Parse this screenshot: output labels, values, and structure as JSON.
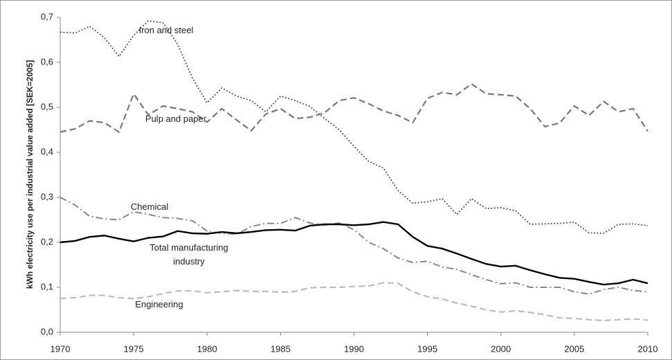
{
  "chart_data": {
    "type": "line",
    "y_label": "kWh electricity use per industrial value added [SEK=2005]",
    "x": [
      1970,
      1971,
      1972,
      1973,
      1974,
      1975,
      1976,
      1977,
      1978,
      1979,
      1980,
      1981,
      1982,
      1983,
      1984,
      1985,
      1986,
      1987,
      1988,
      1989,
      1990,
      1991,
      1992,
      1993,
      1994,
      1995,
      1996,
      1997,
      1998,
      1999,
      2000,
      2001,
      2002,
      2003,
      2004,
      2005,
      2006,
      2007,
      2008,
      2009,
      2010
    ],
    "xlim": [
      1970,
      2010
    ],
    "xticks": [
      1970,
      1975,
      1980,
      1985,
      1990,
      1995,
      2000,
      2005,
      2010
    ],
    "ylim": [
      0,
      0.7
    ],
    "yticks": [
      {
        "value": 0,
        "label": "0,0"
      },
      {
        "value": 0.1,
        "label": "0,1"
      },
      {
        "value": 0.2,
        "label": "0,2"
      },
      {
        "value": 0.3,
        "label": "0,3"
      },
      {
        "value": 0.4,
        "label": "0,4"
      },
      {
        "value": 0.5,
        "label": "0,5"
      },
      {
        "value": 0.6,
        "label": "0,6"
      },
      {
        "value": 0.7,
        "label": "0,7"
      }
    ],
    "grid": false,
    "series": [
      {
        "name": "Iron and steel",
        "color": "#555555",
        "line_style": "dotted",
        "values": [
          0.667,
          0.665,
          0.68,
          0.655,
          0.613,
          0.66,
          0.692,
          0.688,
          0.64,
          0.565,
          0.51,
          0.543,
          0.525,
          0.515,
          0.49,
          0.525,
          0.515,
          0.502,
          0.475,
          0.45,
          0.413,
          0.38,
          0.365,
          0.315,
          0.287,
          0.29,
          0.297,
          0.262,
          0.297,
          0.275,
          0.277,
          0.27,
          0.24,
          0.241,
          0.242,
          0.245,
          0.221,
          0.22,
          0.24,
          0.241,
          0.237
        ]
      },
      {
        "name": "Pulp and paper",
        "color": "#777777",
        "line_style": "dashed",
        "values": [
          0.445,
          0.452,
          0.47,
          0.466,
          0.445,
          0.53,
          0.483,
          0.503,
          0.497,
          0.49,
          0.467,
          0.497,
          0.472,
          0.448,
          0.485,
          0.497,
          0.475,
          0.478,
          0.488,
          0.515,
          0.521,
          0.508,
          0.492,
          0.482,
          0.466,
          0.52,
          0.533,
          0.528,
          0.552,
          0.53,
          0.528,
          0.525,
          0.497,
          0.457,
          0.465,
          0.503,
          0.482,
          0.513,
          0.49,
          0.497,
          0.447
        ]
      },
      {
        "name": "Chemical",
        "color": "#888888",
        "line_style": "dashdot",
        "values": [
          0.3,
          0.283,
          0.258,
          0.252,
          0.25,
          0.268,
          0.262,
          0.255,
          0.253,
          0.248,
          0.225,
          0.22,
          0.218,
          0.235,
          0.242,
          0.242,
          0.255,
          0.243,
          0.238,
          0.243,
          0.228,
          0.2,
          0.186,
          0.165,
          0.155,
          0.158,
          0.145,
          0.14,
          0.128,
          0.117,
          0.108,
          0.11,
          0.1,
          0.1,
          0.1,
          0.09,
          0.085,
          0.095,
          0.1,
          0.093,
          0.09
        ]
      },
      {
        "name": "Total manufacturing industry",
        "color": "#000000",
        "line_style": "solid",
        "values": [
          0.2,
          0.203,
          0.212,
          0.215,
          0.208,
          0.202,
          0.21,
          0.213,
          0.225,
          0.22,
          0.219,
          0.223,
          0.22,
          0.223,
          0.227,
          0.228,
          0.226,
          0.237,
          0.24,
          0.24,
          0.238,
          0.24,
          0.245,
          0.24,
          0.212,
          0.192,
          0.186,
          0.175,
          0.163,
          0.152,
          0.146,
          0.148,
          0.138,
          0.129,
          0.121,
          0.119,
          0.112,
          0.106,
          0.109,
          0.117,
          0.109
        ]
      },
      {
        "name": "Engineering",
        "color": "#bbbbbb",
        "line_style": "dashed",
        "values": [
          0.075,
          0.077,
          0.082,
          0.082,
          0.077,
          0.075,
          0.079,
          0.086,
          0.092,
          0.092,
          0.088,
          0.09,
          0.093,
          0.091,
          0.091,
          0.089,
          0.091,
          0.099,
          0.1,
          0.1,
          0.102,
          0.103,
          0.11,
          0.109,
          0.09,
          0.079,
          0.074,
          0.065,
          0.058,
          0.05,
          0.045,
          0.048,
          0.044,
          0.039,
          0.032,
          0.031,
          0.028,
          0.026,
          0.028,
          0.03,
          0.027
        ]
      }
    ]
  }
}
